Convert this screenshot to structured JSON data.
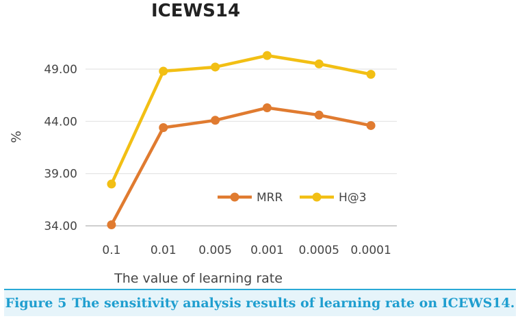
{
  "chart_data": {
    "type": "line",
    "title": "ICEWS14",
    "xlabel": "The value of learning rate",
    "ylabel": "%",
    "categories": [
      "0.1",
      "0.01",
      "0.005",
      "0.001",
      "0.0005",
      "0.0001"
    ],
    "ylim": [
      34.0,
      49.0
    ],
    "yticks": [
      "34.00",
      "39.00",
      "44.00",
      "49.00"
    ],
    "grid": true,
    "legend": "bottom-right",
    "series": [
      {
        "name": "MRR",
        "color": "#e07b30",
        "values": [
          34.1,
          43.4,
          44.1,
          45.3,
          44.6,
          43.6
        ]
      },
      {
        "name": "H@3",
        "color": "#f2bf14",
        "values": [
          38.0,
          48.8,
          49.2,
          50.3,
          49.5,
          48.5
        ]
      }
    ]
  },
  "caption": {
    "label": "Figure 5",
    "text": "The sensitivity analysis results of learning rate on ICEWS14."
  }
}
